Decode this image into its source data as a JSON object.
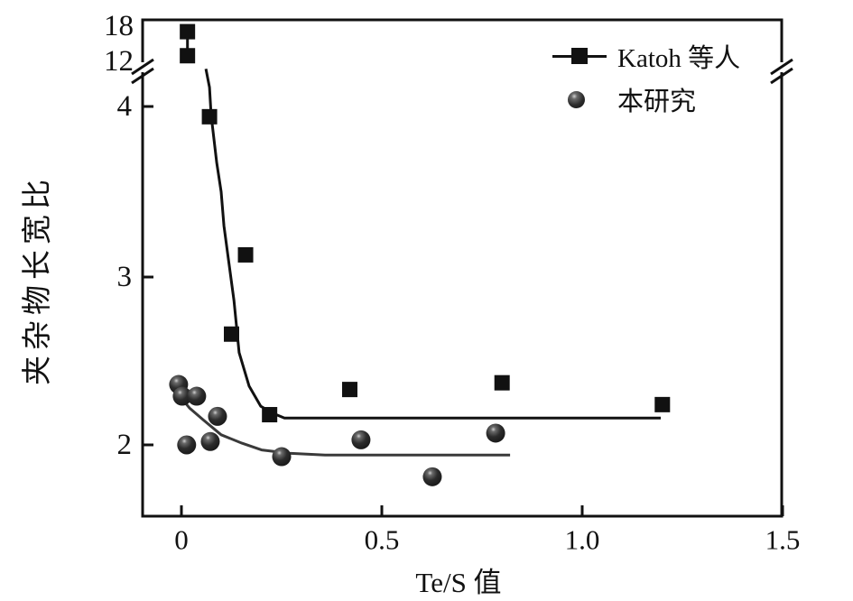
{
  "chart_data": {
    "type": "scatter",
    "title": "",
    "xlabel": "Te/S 值",
    "ylabel": "夹杂物长宽比",
    "background": "#ffffff",
    "ink_color": "#111111",
    "x_axis": {
      "range": [
        -0.1,
        1.5
      ],
      "ticks": [
        0,
        0.5,
        1.0,
        1.5
      ],
      "tick_labels": [
        "0",
        "0.5",
        "1.0",
        "1.5"
      ]
    },
    "y_axis": {
      "broken": true,
      "break_between": [
        4,
        12
      ],
      "lower_ticks": [
        2,
        3,
        4
      ],
      "lower_tick_labels": [
        "2",
        "3",
        "4"
      ],
      "upper_ticks": [
        12,
        18
      ],
      "upper_tick_labels": [
        "12",
        "18"
      ]
    },
    "legend": {
      "position": "top-right"
    },
    "series": [
      {
        "name": "Katoh 等人",
        "marker": "filled-square",
        "color": "#111111",
        "points": [
          [
            0.015,
            16.6
          ],
          [
            0.015,
            12.5
          ],
          [
            0.07,
            3.94
          ],
          [
            0.16,
            3.13
          ],
          [
            0.125,
            2.66
          ],
          [
            0.22,
            2.18
          ],
          [
            0.42,
            2.33
          ],
          [
            0.8,
            2.37
          ],
          [
            1.2,
            2.24
          ]
        ],
        "fit_curve_upper": [
          [
            0.015,
            16.6
          ],
          [
            0.015,
            12.5
          ]
        ],
        "fit_curve": [
          [
            0.061,
            10.3
          ],
          [
            0.07,
            7.2
          ],
          [
            0.074,
            3.95
          ],
          [
            0.088,
            3.67
          ],
          [
            0.099,
            3.5
          ],
          [
            0.106,
            3.3
          ],
          [
            0.117,
            3.11
          ],
          [
            0.131,
            2.86
          ],
          [
            0.144,
            2.55
          ],
          [
            0.169,
            2.35
          ],
          [
            0.198,
            2.23
          ],
          [
            0.227,
            2.19
          ],
          [
            0.257,
            2.16
          ],
          [
            0.313,
            2.16
          ],
          [
            1.196,
            2.16
          ]
        ],
        "plateau": 2.16
      },
      {
        "name": "本研究",
        "marker": "sphere",
        "color": "#2e2e2e",
        "points": [
          [
            -0.007,
            2.36
          ],
          [
            0.002,
            2.29
          ],
          [
            0.038,
            2.29
          ],
          [
            0.09,
            2.17
          ],
          [
            0.013,
            2.0
          ],
          [
            0.072,
            2.02
          ],
          [
            0.25,
            1.93
          ],
          [
            0.448,
            2.03
          ],
          [
            0.626,
            1.81
          ],
          [
            0.784,
            2.07
          ]
        ],
        "fit_curve": [
          [
            -0.011,
            2.31
          ],
          [
            0.02,
            2.22
          ],
          [
            0.054,
            2.15
          ],
          [
            0.099,
            2.06
          ],
          [
            0.151,
            2.01
          ],
          [
            0.2,
            1.97
          ],
          [
            0.268,
            1.95
          ],
          [
            0.358,
            1.94
          ],
          [
            0.82,
            1.94
          ]
        ],
        "plateau": 1.95
      }
    ]
  }
}
